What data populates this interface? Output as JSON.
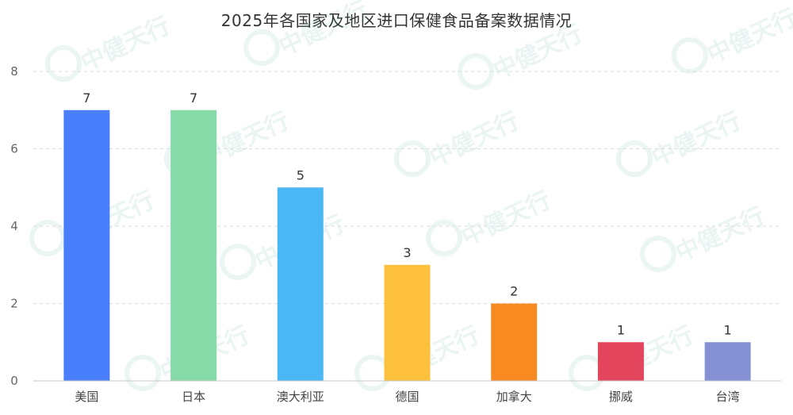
{
  "chart_data": {
    "type": "bar",
    "title": "2025年各国家及地区进口保健食品备案数据情况",
    "categories": [
      "美国",
      "日本",
      "澳大利亚",
      "德国",
      "加拿大",
      "挪威",
      "台湾"
    ],
    "values": [
      7,
      7,
      5,
      3,
      2,
      1,
      1
    ],
    "colors": [
      "#4a7ffb",
      "#86dba8",
      "#4bb7f5",
      "#fcc03d",
      "#f88a22",
      "#e3455c",
      "#8691d4"
    ],
    "ylim": [
      0,
      8
    ],
    "yticks": [
      0,
      2,
      4,
      6,
      8
    ],
    "grid": true,
    "legend": "none"
  },
  "watermark": {
    "text": "中健天行",
    "color": "#1f9c86"
  }
}
